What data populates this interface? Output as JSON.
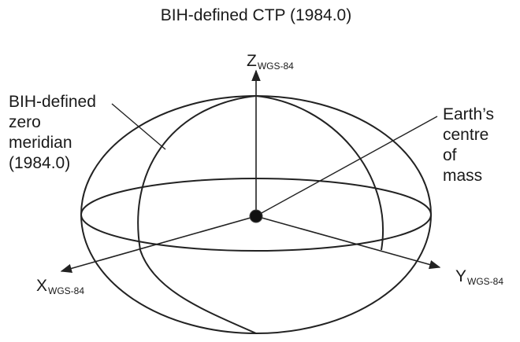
{
  "title": "BIH-defined CTP (1984.0)",
  "axes": {
    "z": {
      "letter": "Z",
      "subscript": "WGS-84"
    },
    "x": {
      "letter": "X",
      "subscript": "WGS-84"
    },
    "y": {
      "letter": "Y",
      "subscript": "WGS-84"
    }
  },
  "labels": {
    "meridian": [
      "BIH-defined",
      "zero",
      "meridian",
      "(1984.0)"
    ],
    "centre": [
      "Earth’s",
      "centre",
      "of",
      "mass"
    ]
  },
  "colors": {
    "ink": "#222222",
    "background": "#ffffff"
  }
}
